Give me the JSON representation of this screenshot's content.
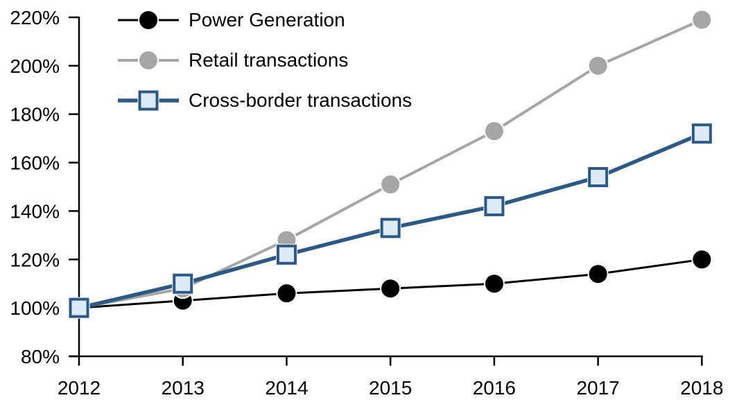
{
  "chart_data": {
    "type": "line",
    "title": "",
    "xlabel": "",
    "ylabel": "",
    "categories": [
      "2012",
      "2013",
      "2014",
      "2015",
      "2016",
      "2017",
      "2018"
    ],
    "y_axis": {
      "min": 80,
      "max": 220,
      "step": 20,
      "unit": "%",
      "tick_labels": [
        "80%",
        "100%",
        "120%",
        "140%",
        "160%",
        "180%",
        "200%",
        "220%"
      ]
    },
    "grid": false,
    "legend_position": "top-left",
    "background_color": "#FFFFFF",
    "axis_color": "#000000",
    "series": [
      {
        "name": "Power Generation",
        "marker": "circle",
        "color": "#000000",
        "marker_fill": "#000000",
        "line_width": 3,
        "values": [
          100,
          103,
          106,
          108,
          110,
          114,
          120
        ]
      },
      {
        "name": "Retail transactions",
        "marker": "circle",
        "color": "#A6A6A6",
        "marker_fill": "#A6A6A6",
        "line_width": 4,
        "values": [
          100,
          108,
          128,
          151,
          173,
          200,
          219
        ]
      },
      {
        "name": "Cross-border transactions",
        "marker": "square",
        "color": "#2C5985",
        "marker_fill": "#DEEBF7",
        "line_width": 5.5,
        "values": [
          100,
          110,
          122,
          133,
          142,
          154,
          172
        ]
      }
    ]
  }
}
